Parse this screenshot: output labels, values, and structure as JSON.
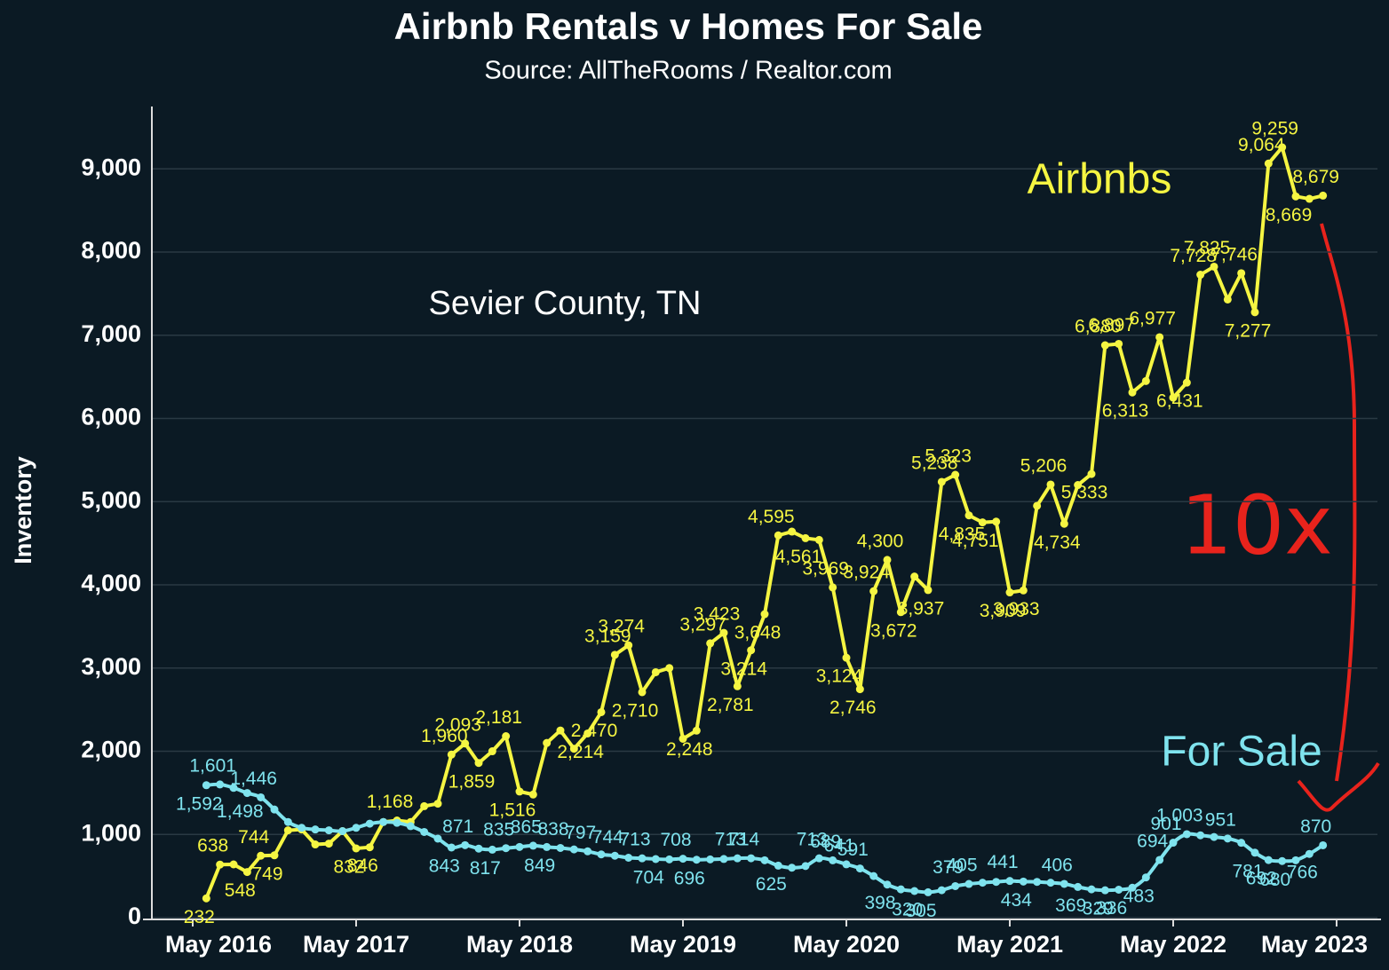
{
  "chart_data": {
    "type": "line",
    "title": "Airbnb Rentals v Homes For Sale",
    "subtitle": "Source: AllTheRooms / Realtor.com",
    "y_label": "Inventory",
    "annotations": [
      {
        "text": "Sevier County, TN"
      },
      {
        "text": "10x"
      }
    ],
    "x": [
      "2016-06",
      "2016-07",
      "2016-08",
      "2016-09",
      "2016-10",
      "2016-11",
      "2016-12",
      "2017-01",
      "2017-02",
      "2017-03",
      "2017-04",
      "2017-05",
      "2017-06",
      "2017-07",
      "2017-08",
      "2017-09",
      "2017-10",
      "2017-11",
      "2017-12",
      "2018-01",
      "2018-02",
      "2018-03",
      "2018-04",
      "2018-05",
      "2018-06",
      "2018-07",
      "2018-08",
      "2018-09",
      "2018-10",
      "2018-11",
      "2018-12",
      "2019-01",
      "2019-02",
      "2019-03",
      "2019-04",
      "2019-05",
      "2019-06",
      "2019-07",
      "2019-08",
      "2019-09",
      "2019-10",
      "2019-11",
      "2019-12",
      "2020-01",
      "2020-02",
      "2020-03",
      "2020-04",
      "2020-05",
      "2020-06",
      "2020-07",
      "2020-08",
      "2020-09",
      "2020-10",
      "2020-11",
      "2020-12",
      "2021-01",
      "2021-02",
      "2021-03",
      "2021-04",
      "2021-05",
      "2021-06",
      "2021-07",
      "2021-08",
      "2021-09",
      "2021-10",
      "2021-11",
      "2021-12",
      "2022-01",
      "2022-02",
      "2022-03",
      "2022-04",
      "2022-05",
      "2022-06",
      "2022-07",
      "2022-08",
      "2022-09",
      "2022-10",
      "2022-11",
      "2022-12",
      "2023-01",
      "2023-02",
      "2023-03",
      "2023-04"
    ],
    "series": [
      {
        "name": "Airbnbs",
        "color": "#f5f542",
        "smooth": false,
        "values": [
          232,
          638,
          640,
          548,
          744,
          749,
          1050,
          1060,
          880,
          890,
          1040,
          832,
          846,
          1150,
          1168,
          1150,
          1340,
          1370,
          1960,
          2093,
          1859,
          2000,
          2181,
          1516,
          1480,
          2100,
          2250,
          2030,
          2214,
          2470,
          3159,
          3274,
          2710,
          2950,
          3000,
          2150,
          2248,
          3297,
          3423,
          2781,
          3214,
          3648,
          4595,
          4640,
          4561,
          4540,
          3969,
          3124,
          2746,
          3924,
          4300,
          3672,
          4100,
          3937,
          5238,
          5323,
          4835,
          4751,
          4760,
          3909,
          3933,
          4950,
          5206,
          4734,
          5200,
          5333,
          6880,
          6897,
          6313,
          6450,
          6977,
          6250,
          6431,
          7728,
          7825,
          7430,
          7746,
          7277,
          9064,
          9259,
          8669,
          8640,
          8679
        ],
        "value_labels": [
          "232",
          "638",
          null,
          "548",
          "744",
          "749",
          null,
          null,
          null,
          null,
          null,
          "832",
          "846",
          null,
          "1,168",
          null,
          null,
          null,
          "1,960",
          "2,093",
          "1,859",
          null,
          "2,181",
          "1,516",
          null,
          null,
          null,
          null,
          "2,214",
          "2,470",
          "3,159",
          "3,274",
          "2,710",
          null,
          null,
          null,
          "2,248",
          "3,297",
          "3,423",
          "2,781",
          "3,214",
          "3,648",
          "4,595",
          null,
          "4,561",
          null,
          "3,969",
          "3,124",
          "2,746",
          "3,924",
          "4,300",
          "3,672",
          null,
          "3,937",
          "5,238",
          "5,323",
          "4,835",
          "4,751",
          null,
          "3,909",
          "3,933",
          null,
          "5,206",
          "4,734",
          null,
          "5,333",
          "6,880",
          "6,897",
          "6,313",
          null,
          "6,977",
          null,
          "6,431",
          "7,728",
          "7,825",
          null,
          "7,746",
          "7,277",
          "9,064",
          "9,259",
          "8,669",
          null,
          "8,679"
        ]
      },
      {
        "name": "For Sale",
        "color": "#7fe3ee",
        "smooth": true,
        "values": [
          1592,
          1601,
          1560,
          1498,
          1446,
          1300,
          1150,
          1080,
          1060,
          1050,
          1040,
          1080,
          1130,
          1150,
          1140,
          1100,
          1030,
          950,
          843,
          871,
          830,
          817,
          835,
          850,
          865,
          849,
          838,
          820,
          797,
          760,
          744,
          720,
          713,
          704,
          700,
          708,
          696,
          700,
          705,
          713,
          714,
          690,
          625,
          600,
          620,
          713,
          689,
          641,
          591,
          500,
          398,
          340,
          320,
          305,
          330,
          379,
          405,
          420,
          430,
          441,
          434,
          430,
          420,
          406,
          369,
          340,
          329,
          336,
          360,
          483,
          694,
          901,
          1003,
          990,
          970,
          951,
          900,
          781,
          692,
          680,
          690,
          766,
          870
        ],
        "value_labels": [
          "1,592",
          "1,601",
          null,
          "1,498",
          "1,446",
          null,
          null,
          null,
          null,
          null,
          null,
          null,
          null,
          null,
          null,
          null,
          null,
          null,
          "843",
          "871",
          null,
          "817",
          "835",
          null,
          "865",
          "849",
          "838",
          null,
          "797",
          null,
          "744",
          null,
          "713",
          "704",
          null,
          "708",
          "696",
          null,
          null,
          "713",
          "714",
          null,
          "625",
          null,
          null,
          "713",
          "689",
          "641",
          "591",
          null,
          "398",
          null,
          "320",
          "305",
          null,
          "379",
          "405",
          null,
          null,
          "441",
          "434",
          null,
          null,
          "406",
          "369",
          null,
          "329",
          "336",
          null,
          "483",
          "694",
          "901",
          "1,003",
          null,
          null,
          "951",
          null,
          "781",
          "692",
          "680",
          null,
          "766",
          "870"
        ]
      }
    ],
    "xlim": [
      "2016-02",
      "2023-08"
    ],
    "xticks": [
      {
        "value": "2016-05",
        "label": "May 2016"
      },
      {
        "value": "2017-05",
        "label": "May 2017"
      },
      {
        "value": "2018-05",
        "label": "May 2018"
      },
      {
        "value": "2019-05",
        "label": "May 2019"
      },
      {
        "value": "2020-05",
        "label": "May 2020"
      },
      {
        "value": "2021-05",
        "label": "May 2021"
      },
      {
        "value": "2022-05",
        "label": "May 2022"
      },
      {
        "value": "2023-05",
        "label": "May 2023"
      }
    ],
    "ylim": [
      0,
      9750
    ],
    "yticks": [
      0,
      {
        "value": 1000,
        "label": "1,000"
      },
      {
        "value": 2000,
        "label": "2,000"
      },
      {
        "value": 3000,
        "label": "3,000"
      },
      {
        "value": 4000,
        "label": "4,000"
      },
      {
        "value": 5000,
        "label": "5,000"
      },
      {
        "value": 6000,
        "label": "6,000"
      },
      {
        "value": 7000,
        "label": "7,000"
      },
      {
        "value": 8000,
        "label": "8,000"
      },
      {
        "value": 9000,
        "label": "9,000"
      }
    ],
    "grid": true
  }
}
